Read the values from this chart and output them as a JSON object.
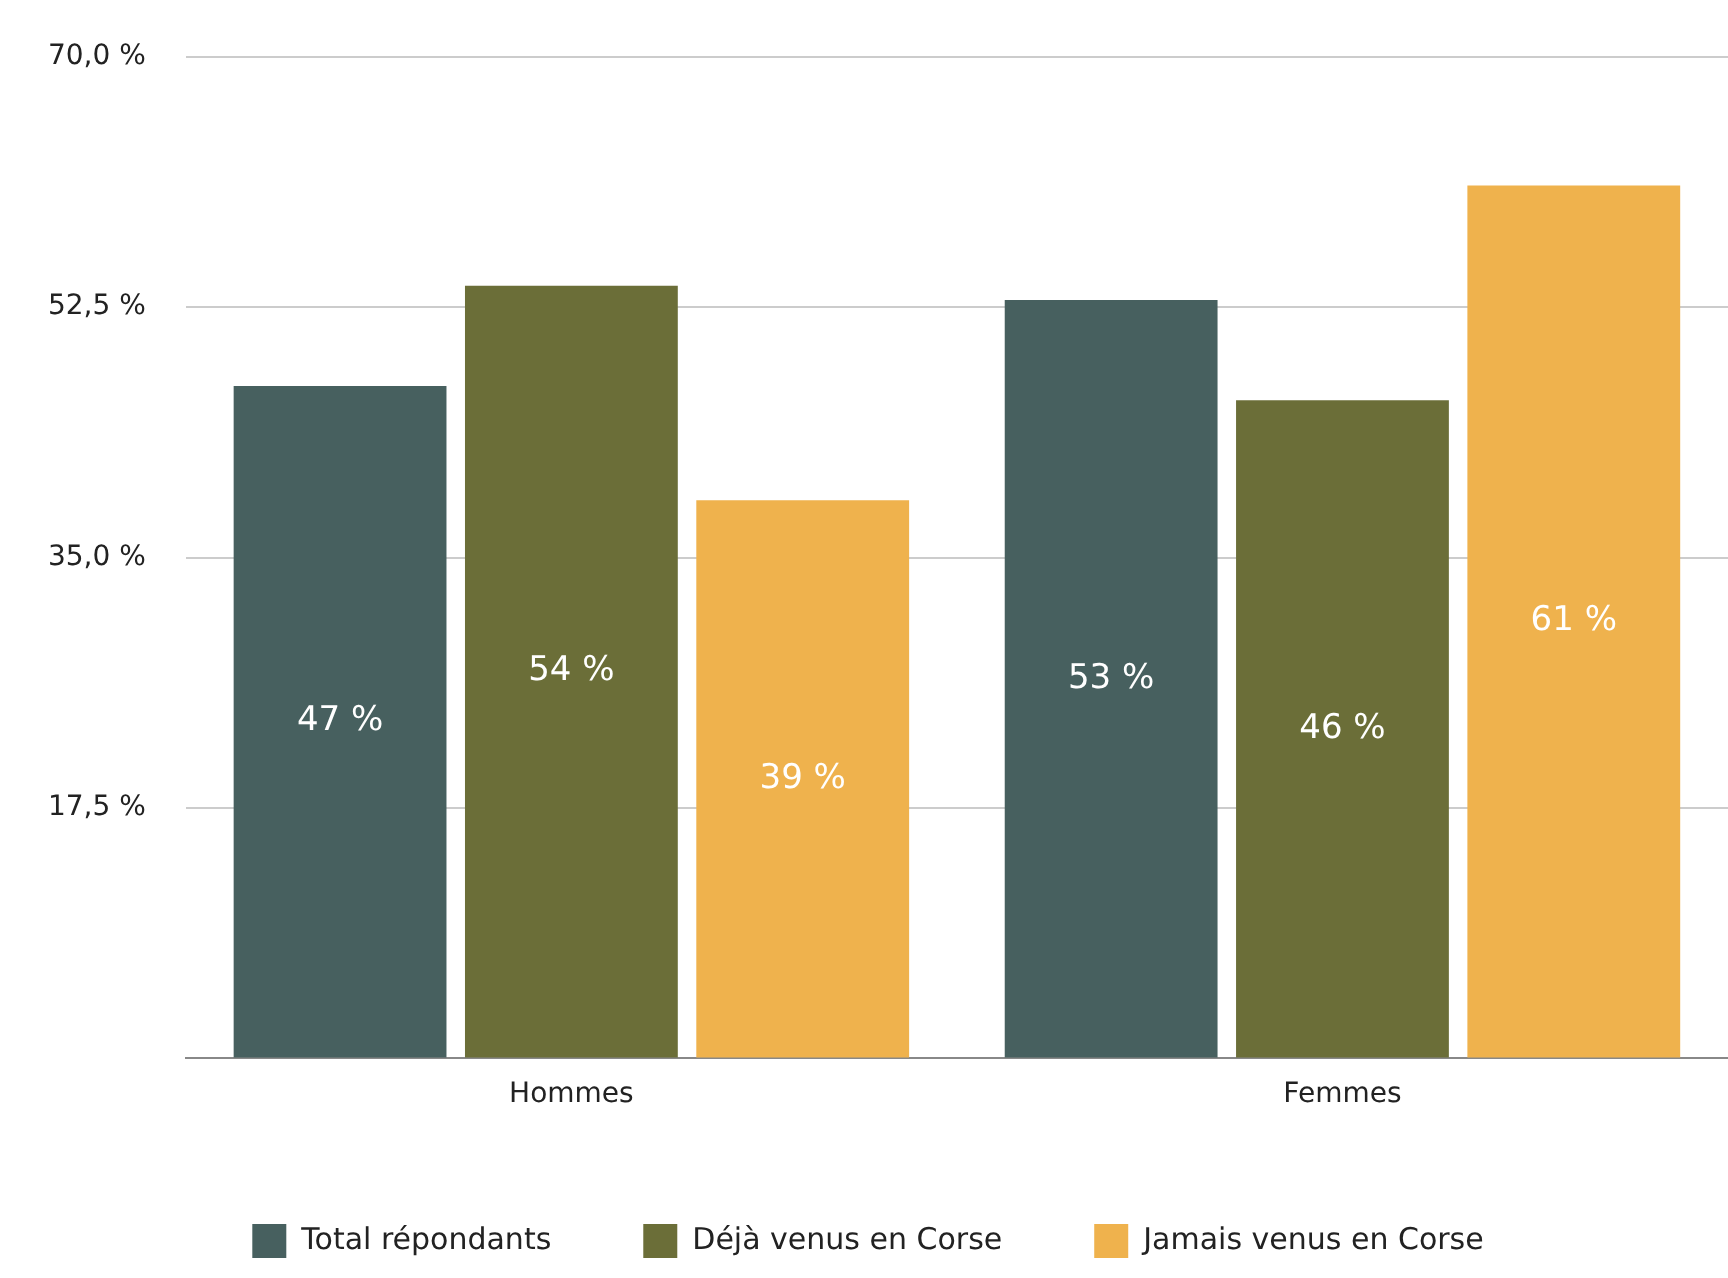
{
  "chart_data": {
    "type": "bar",
    "categories": [
      "Hommes",
      "Femmes"
    ],
    "series": [
      {
        "name": "Total répondants",
        "color": "#47605f",
        "values": [
          47,
          53
        ],
        "value_labels": [
          "47 %",
          "53 %"
        ]
      },
      {
        "name": "Déjà venus en Corse",
        "color": "#6b6e38",
        "values": [
          54,
          46
        ],
        "value_labels": [
          "54 %",
          "46 %"
        ]
      },
      {
        "name": "Jamais venus en Corse",
        "color": "#efb24d",
        "values": [
          39,
          61
        ],
        "value_labels": [
          "39 %",
          "61 %"
        ]
      }
    ],
    "ylim": [
      0,
      70
    ],
    "yticks": [
      {
        "value": 0,
        "label": null
      },
      {
        "value": 17.5,
        "label": "17,5 %"
      },
      {
        "value": 35,
        "label": "35,0 %"
      },
      {
        "value": 52.5,
        "label": "52,5 %"
      },
      {
        "value": 70,
        "label": "70,0 %"
      }
    ],
    "grid": "y",
    "legend": "bottom"
  }
}
